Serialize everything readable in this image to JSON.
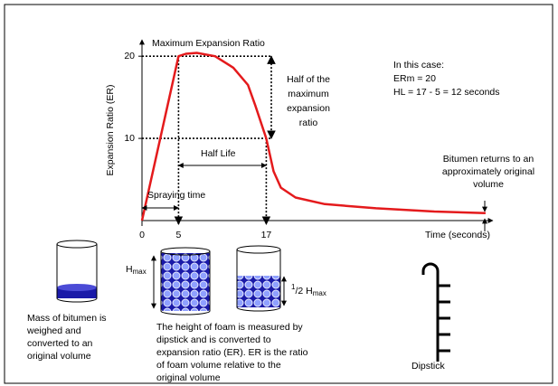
{
  "chart_data": {
    "type": "line",
    "xlabel": "Time (seconds)",
    "ylabel": "Expansion Ratio (ER)",
    "x": [
      0,
      5,
      6,
      7.5,
      10,
      12.5,
      14.5,
      15.5,
      17,
      18,
      19,
      21,
      25,
      32,
      40,
      47
    ],
    "values": [
      0,
      20,
      20.3,
      20.4,
      20,
      18.6,
      16.5,
      14,
      10,
      6,
      4,
      2.8,
      2,
      1.5,
      1.1,
      0.9
    ],
    "color": "#e41a1c",
    "xlim": [
      0,
      48
    ],
    "ylim": [
      0,
      22
    ],
    "xticks": [
      0,
      5,
      17
    ],
    "yticks": [
      10,
      20
    ],
    "annotations": {
      "max_ratio": "Maximum Expansion Ratio",
      "half_max": [
        "Half of the",
        "maximum",
        "expansion",
        "ratio"
      ],
      "case": [
        "In this case:",
        "ERm = 20",
        "HL    = 17 - 5 = 12 seconds"
      ],
      "half_life": "Half  Life",
      "spraying": "Spraying time",
      "returns": [
        "Bitumen returns to an",
        "approximately  original",
        "volume"
      ]
    }
  },
  "illustration": {
    "caption_mass": [
      "Mass of bitumen is",
      "weighed and",
      "converted to an",
      "original volume"
    ],
    "caption_foam": [
      "The height of foam is measured by",
      "dipstick and is converted to",
      "expansion ratio (ER). ER is the ratio",
      "of foam volume relative to the",
      "original volume"
    ],
    "hmax": {
      "main": "H",
      "sub": "max"
    },
    "half_hmax": {
      "num": "1",
      "main": "/2 H",
      "sub": "max"
    },
    "dipstick": "Dipstick"
  }
}
